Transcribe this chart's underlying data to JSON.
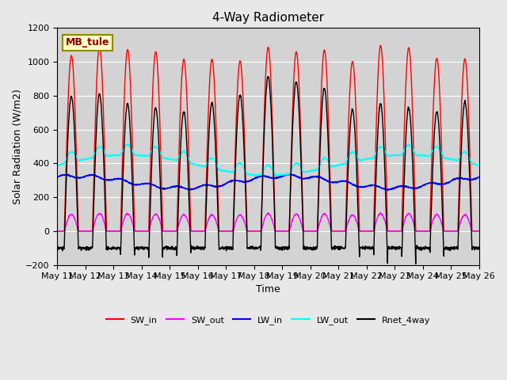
{
  "title": "4-Way Radiometer",
  "xlabel": "Time",
  "ylabel": "Solar Radiation (W/m2)",
  "station_label": "MB_tule",
  "ylim": [
    -200,
    1200
  ],
  "yticks": [
    -200,
    0,
    200,
    400,
    600,
    800,
    1000,
    1200
  ],
  "colors": {
    "SW_in": "#ff0000",
    "SW_out": "#ff00ff",
    "LW_in": "#0000ff",
    "LW_out": "#00ffff",
    "Rnet_4way": "#000000"
  },
  "n_days": 15,
  "start_day": 11,
  "SW_in_peak": 1050,
  "LW_in_base": 290,
  "LW_in_amplitude": 35,
  "LW_out_base": 390,
  "LW_out_amplitude": 60,
  "Rnet_night": -100,
  "background_color": "#e8e8e8",
  "plot_bg_color": "#d3d3d3",
  "grid_color": "#ffffff",
  "legend_labels": [
    "SW_in",
    "SW_out",
    "LW_in",
    "LW_out",
    "Rnet_4way"
  ],
  "xtick_labels": [
    "May 11",
    "May 12",
    "May 13",
    "May 14",
    "May 15",
    "May 16",
    "May 17",
    "May 18",
    "May 19",
    "May 20",
    "May 21",
    "May 22",
    "May 23",
    "May 24",
    "May 25",
    "May 26"
  ]
}
